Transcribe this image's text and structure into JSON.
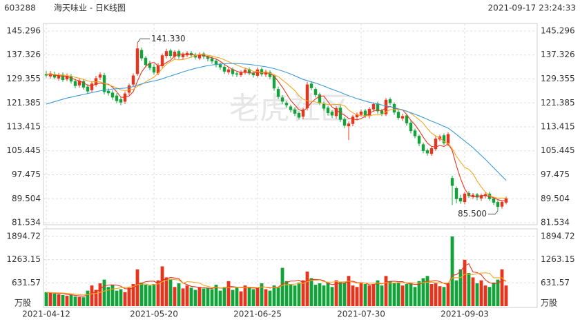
{
  "chart_data": {
    "type": "candlestick",
    "code": "603288",
    "title": "海天味业 - 日K线图",
    "timestamp": "2021-09-17 23:24:33",
    "watermark": "老虎社区",
    "categories": [
      "2021-04-12",
      null,
      null,
      null,
      null,
      null,
      null,
      null,
      null,
      null,
      null,
      null,
      null,
      null,
      null,
      null,
      null,
      null,
      null,
      null,
      null,
      null,
      null,
      null,
      null,
      null,
      "2021-05-20",
      null,
      null,
      null,
      null,
      null,
      null,
      null,
      null,
      null,
      null,
      null,
      null,
      null,
      null,
      null,
      null,
      null,
      null,
      null,
      null,
      null,
      null,
      null,
      null,
      "2021-06-25",
      null,
      null,
      null,
      null,
      null,
      null,
      null,
      null,
      null,
      null,
      null,
      null,
      null,
      null,
      null,
      null,
      null,
      null,
      null,
      null,
      null,
      null,
      null,
      null,
      "2021-07-30",
      null,
      null,
      null,
      null,
      null,
      null,
      null,
      null,
      null,
      null,
      null,
      null,
      null,
      null,
      null,
      null,
      null,
      null,
      null,
      null,
      null,
      null,
      null,
      null,
      "2021-09-03",
      null,
      null,
      null,
      null,
      null,
      null,
      null,
      null,
      null,
      null
    ],
    "open": [
      131.0,
      130.2,
      131.0,
      129.5,
      130.8,
      129.2,
      130.2,
      128.6,
      127.2,
      128.6,
      126.8,
      125.6,
      127.4,
      129.8,
      130.6,
      125.4,
      124.8,
      123.8,
      122.6,
      121.8,
      124.8,
      127.5,
      131.0,
      139.0,
      136.4,
      134.6,
      133.4,
      131.2,
      133.6,
      137.0,
      138.8,
      136.8,
      138.6,
      136.6,
      137.2,
      138.0,
      137.4,
      136.2,
      137.8,
      136.9,
      136.2,
      135.4,
      134.2,
      133.4,
      131.6,
      132.6,
      131.2,
      130.6,
      131.4,
      132.6,
      131.4,
      130.4,
      132.6,
      130.8,
      131.6,
      130.4,
      126.0,
      123.2,
      121.4,
      120.2,
      119.2,
      118.0,
      116.8,
      119.6,
      127.8,
      126.0,
      124.2,
      121.0,
      119.8,
      118.4,
      117.0,
      119.8,
      116.0,
      113.6,
      114.4,
      116.6,
      117.4,
      118.8,
      117.0,
      119.2,
      121.2,
      118.8,
      117.6,
      122.6,
      121.0,
      118.4,
      116.2,
      117.2,
      114.8,
      112.2,
      110.4,
      107.6,
      105.6,
      104.4,
      106.0,
      109.2,
      110.6,
      107.8,
      96.4,
      93.0,
      89.8,
      88.4,
      91.4,
      90.2,
      90.9,
      89.6,
      90.4,
      91.2,
      89.6,
      88.4,
      86.9,
      88.2
    ],
    "high": [
      132.0,
      132.0,
      131.8,
      131.4,
      131.5,
      131.2,
      131.0,
      129.4,
      129.6,
      129.4,
      127.6,
      128.6,
      130.4,
      131.6,
      131.4,
      126.2,
      125.6,
      124.6,
      123.4,
      125.2,
      127.8,
      131.2,
      141.33,
      139.8,
      137.0,
      135.4,
      134.2,
      134.6,
      137.8,
      139.4,
      139.4,
      138.9,
      139.2,
      138.2,
      138.6,
      138.6,
      138.0,
      138.2,
      138.4,
      137.4,
      136.8,
      136.0,
      134.8,
      134.0,
      133.2,
      133.2,
      131.8,
      132.2,
      133.0,
      133.2,
      132.0,
      133.2,
      133.2,
      132.4,
      132.2,
      130.8,
      126.8,
      124.0,
      122.0,
      120.8,
      119.8,
      118.6,
      119.8,
      128.4,
      128.6,
      126.6,
      124.8,
      121.8,
      120.4,
      119.0,
      120.2,
      120.6,
      116.6,
      115.2,
      117.4,
      118.2,
      119.2,
      119.4,
      120.0,
      121.6,
      121.8,
      119.4,
      123.0,
      123.2,
      121.6,
      119.0,
      117.8,
      117.8,
      115.4,
      112.8,
      110.8,
      108.2,
      106.2,
      107.0,
      110.2,
      110.8,
      111.2,
      111.6,
      97.2,
      93.6,
      90.8,
      91.8,
      92.0,
      91.4,
      91.4,
      91.2,
      91.6,
      91.8,
      90.2,
      89.0,
      89.0,
      90.2
    ],
    "low": [
      129.8,
      129.4,
      129.2,
      128.8,
      128.4,
      128.6,
      127.8,
      126.2,
      126.4,
      125.8,
      124.4,
      125.0,
      126.8,
      129.0,
      124.2,
      123.8,
      122.4,
      121.2,
      120.6,
      121.0,
      124.0,
      126.8,
      130.4,
      135.4,
      133.2,
      132.2,
      130.8,
      130.6,
      133.0,
      136.2,
      136.2,
      136.0,
      136.0,
      135.8,
      136.6,
      136.4,
      135.8,
      135.6,
      136.0,
      135.2,
      134.4,
      133.2,
      132.4,
      131.0,
      130.8,
      130.2,
      130.0,
      130.0,
      130.8,
      130.6,
      129.8,
      129.8,
      130.2,
      130.0,
      129.2,
      125.4,
      122.6,
      121.0,
      119.8,
      118.2,
      117.0,
      115.8,
      116.0,
      118.8,
      125.6,
      123.2,
      120.6,
      118.8,
      117.2,
      116.4,
      116.2,
      115.0,
      113.0,
      109.0,
      113.6,
      115.8,
      116.8,
      116.4,
      116.2,
      118.4,
      117.8,
      117.0,
      117.0,
      120.6,
      117.4,
      115.8,
      115.4,
      113.8,
      111.2,
      109.6,
      107.0,
      104.6,
      103.8,
      103.8,
      105.4,
      108.6,
      107.4,
      107.0,
      87.4,
      88.0,
      87.8,
      87.6,
      89.8,
      89.4,
      89.0,
      88.8,
      89.6,
      88.8,
      87.4,
      85.5,
      86.2,
      87.6
    ],
    "close": [
      130.5,
      131.2,
      129.8,
      130.6,
      129.0,
      130.4,
      128.5,
      127.0,
      128.8,
      126.5,
      125.2,
      127.8,
      129.6,
      130.8,
      125.0,
      124.6,
      123.2,
      122.0,
      121.5,
      124.5,
      127.2,
      130.5,
      139.5,
      136.2,
      134.0,
      133.0,
      131.5,
      133.8,
      137.2,
      138.6,
      137.0,
      138.4,
      136.8,
      137.5,
      138.0,
      137.2,
      136.5,
      137.6,
      136.8,
      136.0,
      135.2,
      134.0,
      133.2,
      131.8,
      132.5,
      131.0,
      130.8,
      131.6,
      132.4,
      131.2,
      130.6,
      132.5,
      130.9,
      131.8,
      130.0,
      126.2,
      123.4,
      121.8,
      120.6,
      119.0,
      117.8,
      116.5,
      119.2,
      127.5,
      126.3,
      124.0,
      121.2,
      119.5,
      118.0,
      117.2,
      119.6,
      115.8,
      113.8,
      114.5,
      116.8,
      117.6,
      118.5,
      117.2,
      119.4,
      121.0,
      118.6,
      117.8,
      122.4,
      121.3,
      118.2,
      116.4,
      117.0,
      114.6,
      112.0,
      110.3,
      107.8,
      105.4,
      104.6,
      106.3,
      109.5,
      110.2,
      108.0,
      111.0,
      93.8,
      89.4,
      88.6,
      91.2,
      90.4,
      90.8,
      89.9,
      90.6,
      91.0,
      89.4,
      88.2,
      86.8,
      88.4,
      89.6
    ],
    "up_color": "#e8341c",
    "down_color": "#14a33a",
    "ylim": [
      81.534,
      145.296
    ],
    "yticks": [
      145.296,
      137.326,
      129.355,
      121.385,
      113.415,
      105.445,
      97.475,
      89.504,
      81.534
    ],
    "annotations": [
      {
        "value": 141.33,
        "label": "141.330",
        "at": "high"
      },
      {
        "value": 85.5,
        "label": "85.500",
        "at": "low"
      }
    ],
    "ma_series": [
      {
        "color": "#e8341c",
        "values": [
          130.8,
          130.9,
          130.6,
          130.5,
          130.2,
          130.2,
          129.7,
          129.1,
          128.7,
          128.1,
          127.2,
          127.1,
          127.6,
          128.0,
          127.7,
          127.6,
          126.6,
          125.1,
          123.3,
          123.2,
          123.7,
          125.1,
          128.6,
          131.6,
          133.5,
          134.6,
          134.8,
          133.7,
          133.9,
          134.8,
          135.6,
          137.0,
          137.6,
          137.7,
          137.5,
          137.6,
          137.2,
          137.4,
          137.2,
          136.8,
          136.4,
          136.0,
          135.2,
          134.2,
          133.3,
          132.5,
          131.9,
          131.5,
          131.7,
          131.4,
          131.3,
          131.7,
          131.3,
          131.4,
          131.2,
          130.3,
          128.5,
          126.6,
          124.4,
          122.2,
          120.7,
          119.1,
          118.6,
          119.8,
          121.5,
          122.7,
          123.6,
          123.7,
          121.8,
          120.0,
          119.1,
          118.0,
          117.3,
          116.2,
          116.1,
          115.7,
          116.2,
          116.9,
          117.9,
          118.7,
          119.0,
          118.8,
          119.8,
          120.2,
          119.7,
          119.3,
          119.1,
          117.5,
          115.6,
          114.1,
          112.2,
          110.0,
          108.0,
          106.9,
          106.7,
          107.2,
          106.9,
          107.8,
          105.5,
          100.5,
          96.2,
          92.8,
          90.7,
          90.1,
          90.2,
          90.6,
          90.5,
          90.3,
          89.8,
          89.2,
          88.8,
          88.9
        ]
      },
      {
        "color": "#f5a623",
        "values": [
          130.9,
          131.0,
          130.8,
          130.7,
          130.6,
          130.5,
          130.3,
          129.9,
          129.6,
          129.2,
          128.7,
          128.4,
          128.4,
          128.4,
          127.9,
          127.4,
          126.9,
          126.4,
          125.7,
          125.5,
          125.7,
          125.9,
          126.9,
          127.5,
          128.4,
          129.2,
          130.0,
          131.2,
          132.8,
          134.2,
          135.1,
          135.9,
          135.7,
          135.8,
          136.2,
          136.6,
          137.1,
          137.5,
          137.5,
          137.2,
          137.0,
          136.6,
          136.3,
          135.7,
          135.1,
          134.5,
          134.0,
          133.4,
          133.0,
          132.4,
          131.9,
          131.8,
          131.4,
          131.6,
          131.3,
          130.8,
          130.1,
          129.0,
          127.9,
          126.7,
          125.5,
          123.8,
          122.6,
          122.1,
          121.9,
          121.7,
          121.4,
          121.2,
          120.8,
          120.8,
          120.9,
          120.8,
          120.5,
          119.0,
          118.1,
          117.4,
          117.1,
          117.1,
          117.1,
          117.4,
          117.4,
          117.5,
          118.4,
          119.1,
          119.2,
          119.2,
          119.0,
          118.7,
          117.9,
          116.9,
          115.8,
          114.6,
          112.8,
          111.3,
          110.4,
          109.7,
          108.5,
          107.9,
          106.2,
          103.6,
          101.7,
          99.9,
          99.3,
          97.8,
          95.4,
          93.4,
          91.7,
          90.5,
          90.0,
          89.7,
          89.7,
          89.7
        ]
      },
      {
        "color": "#3d9ad8",
        "values": [
          121.0,
          121.4,
          121.8,
          122.2,
          122.6,
          123.0,
          123.3,
          123.6,
          123.9,
          124.2,
          124.5,
          124.8,
          125.1,
          125.4,
          125.6,
          125.8,
          126.0,
          126.1,
          126.2,
          126.3,
          126.5,
          126.8,
          127.3,
          127.7,
          128.1,
          128.4,
          128.7,
          129.0,
          129.4,
          129.9,
          130.3,
          130.8,
          131.2,
          131.7,
          132.1,
          132.5,
          132.9,
          133.2,
          133.5,
          133.8,
          134.0,
          134.2,
          134.3,
          134.4,
          134.5,
          134.5,
          134.5,
          134.4,
          134.3,
          134.2,
          134.0,
          133.8,
          133.6,
          133.4,
          133.1,
          132.8,
          132.4,
          132.0,
          131.5,
          131.0,
          130.4,
          129.8,
          129.2,
          128.8,
          128.4,
          128.0,
          127.5,
          127.0,
          126.4,
          125.9,
          125.4,
          124.9,
          124.3,
          123.8,
          123.3,
          122.8,
          122.4,
          122.0,
          121.6,
          121.3,
          121.0,
          120.7,
          120.4,
          120.1,
          119.8,
          119.4,
          119.0,
          118.6,
          118.1,
          117.6,
          117.1,
          116.5,
          115.9,
          115.3,
          114.8,
          114.2,
          113.6,
          113.0,
          112.0,
          110.9,
          109.8,
          108.7,
          107.6,
          106.5,
          105.2,
          103.9,
          102.6,
          101.2,
          99.8,
          98.4,
          97.0,
          95.6
        ]
      }
    ],
    "volume": {
      "unit": "万股",
      "ylim": [
        0,
        1894.72
      ],
      "yticks": [
        1894.72,
        1263.15,
        631.57
      ],
      "values": [
        380,
        360,
        340,
        320,
        300,
        280,
        300,
        260,
        250,
        240,
        420,
        560,
        440,
        620,
        720,
        520,
        580,
        420,
        460,
        380,
        500,
        600,
        1000,
        640,
        580,
        560,
        600,
        700,
        1080,
        780,
        740,
        520,
        620,
        480,
        560,
        500,
        440,
        520,
        480,
        500,
        460,
        580,
        420,
        520,
        680,
        440,
        520,
        400,
        560,
        520,
        460,
        500,
        620,
        460,
        420,
        560,
        520,
        1040,
        680,
        600,
        560,
        640,
        700,
        940,
        760,
        580,
        620,
        560,
        640,
        520,
        700,
        660,
        640,
        820,
        560,
        520,
        640,
        600,
        560,
        600,
        700,
        560,
        820,
        680,
        620,
        640,
        560,
        600,
        620,
        520,
        680,
        760,
        820,
        600,
        620,
        540,
        520,
        620,
        1894.72,
        700,
        1000,
        1260,
        900,
        780,
        620,
        700,
        560,
        520,
        640,
        720,
        1000,
        560
      ],
      "ma_series": [
        {
          "color": "#e8341c",
          "values": [
            370,
            365,
            355,
            345,
            340,
            320,
            308,
            292,
            278,
            266,
            302,
            354,
            382,
            456,
            552,
            572,
            576,
            572,
            540,
            472,
            468,
            488,
            588,
            624,
            664,
            676,
            676,
            616,
            704,
            744,
            780,
            764,
            748,
            628,
            584,
            536,
            524,
            504,
            500,
            488,
            480,
            508,
            488,
            496,
            532,
            528,
            516,
            512,
            520,
            496,
            492,
            488,
            532,
            512,
            492,
            512,
            516,
            600,
            644,
            680,
            680,
            704,
            636,
            688,
            720,
            724,
            720,
            692,
            620,
            584,
            608,
            620,
            632,
            668,
            676,
            640,
            636,
            628,
            580,
            584,
            620,
            604,
            648,
            672,
            676,
            664,
            664,
            620,
            608,
            588,
            596,
            636,
            680,
            676,
            696,
            668,
            620,
            580,
            839,
            855,
            947,
            1095,
            1151,
            928,
            912,
            852,
            712,
            636,
            608,
            628,
            688,
            688
          ]
        },
        {
          "color": "#f5a623",
          "values": [
            372,
            370,
            365,
            360,
            355,
            345,
            337,
            324,
            312,
            303,
            311,
            331,
            345,
            374,
            409,
            437,
            465,
            477,
            498,
            512,
            520,
            530,
            582,
            598,
            602,
            574,
            582,
            602,
            664,
            704,
            728,
            720,
            712,
            622,
            664,
            658,
            644,
            626,
            564,
            538,
            508,
            516,
            494,
            498,
            510,
            504,
            512,
            500,
            508,
            514,
            510,
            502,
            522,
            516,
            506,
            502,
            502,
            566,
            578,
            586,
            596,
            610,
            618,
            666,
            700,
            702,
            712,
            664,
            654,
            652,
            666,
            656,
            662,
            680,
            650,
            624,
            628,
            630,
            624,
            630,
            628,
            616,
            640,
            626,
            630,
            642,
            634,
            634,
            640,
            632,
            630,
            636,
            650,
            648,
            642,
            632,
            628,
            630,
            768,
            772,
            772,
            866,
            866,
            854,
            884,
            900,
            904,
            894,
            768,
            770,
            770,
            662
          ]
        }
      ]
    }
  }
}
